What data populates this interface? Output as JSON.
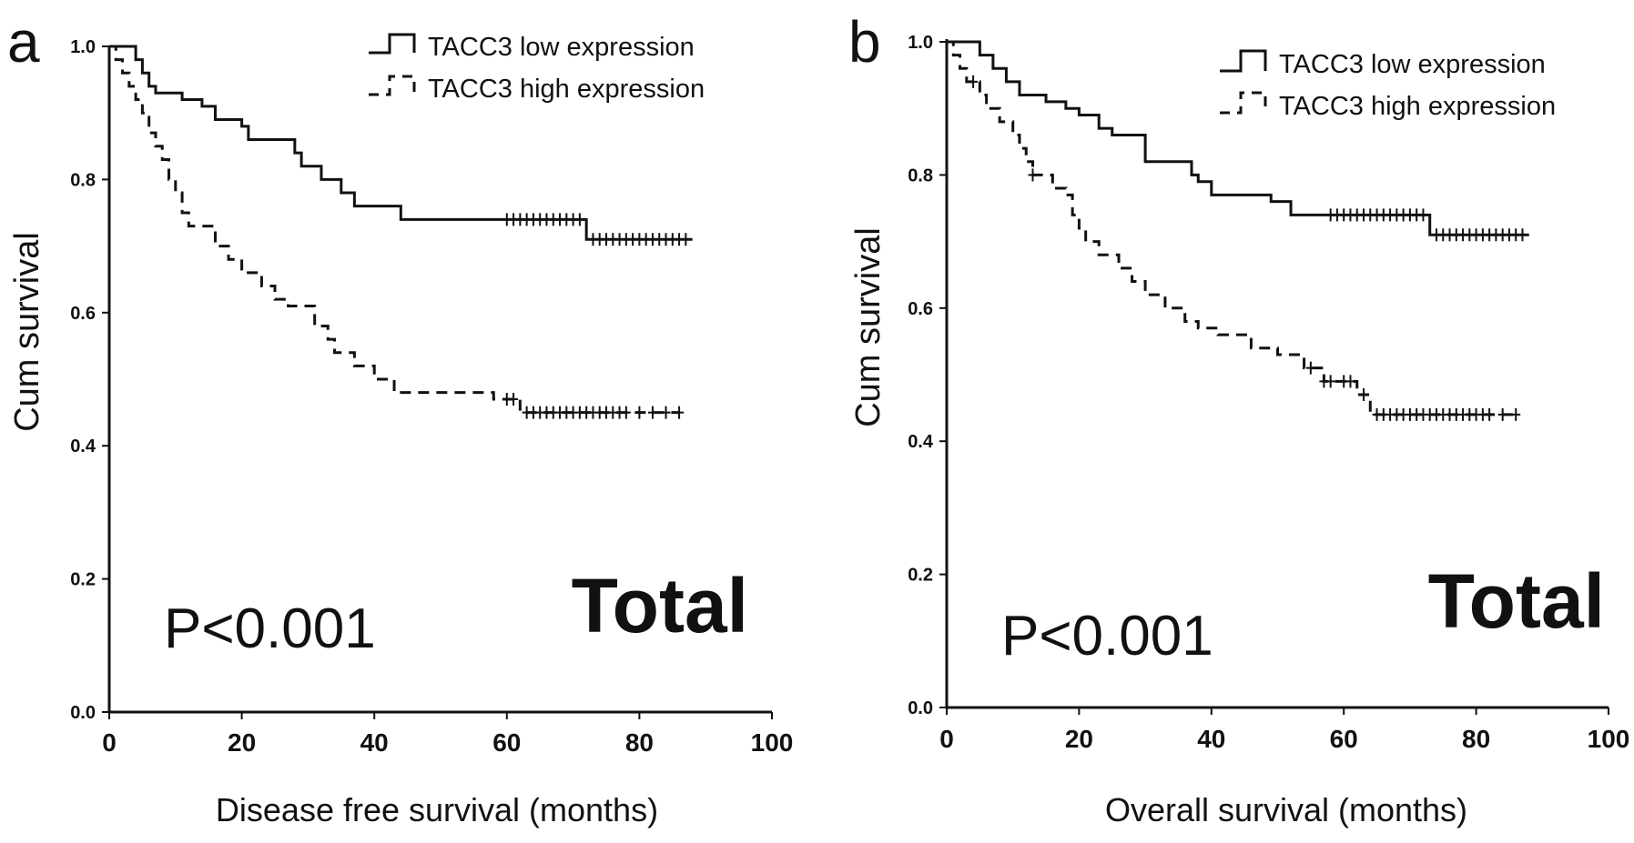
{
  "figure": {
    "colors": {
      "ink": "#111111",
      "background": "#ffffff"
    }
  },
  "chart_data": [
    {
      "type": "line",
      "panel_label": "a",
      "title": "",
      "xlabel": "Disease free survival (months)",
      "ylabel": "Cum survival",
      "xlim": [
        0,
        100
      ],
      "ylim": [
        0.0,
        1.0
      ],
      "x_ticks": [
        "0",
        "20",
        "40",
        "60",
        "80",
        "100"
      ],
      "y_ticks": [
        "0.0",
        "0.2",
        "0.4",
        "0.6",
        "0.8",
        "1.0"
      ],
      "grid": false,
      "legend_position": "top-right",
      "annotations": {
        "p_value": "P<0.001",
        "group": "Total"
      },
      "series": [
        {
          "name": "TACC3 low expression",
          "style": "solid",
          "steps": [
            [
              0,
              1.0
            ],
            [
              4,
              0.98
            ],
            [
              5,
              0.96
            ],
            [
              6,
              0.94
            ],
            [
              7,
              0.93
            ],
            [
              11,
              0.92
            ],
            [
              14,
              0.91
            ],
            [
              16,
              0.89
            ],
            [
              20,
              0.88
            ],
            [
              21,
              0.86
            ],
            [
              28,
              0.84
            ],
            [
              29,
              0.82
            ],
            [
              32,
              0.8
            ],
            [
              35,
              0.78
            ],
            [
              37,
              0.76
            ],
            [
              44,
              0.74
            ],
            [
              72,
              0.71
            ],
            [
              88,
              0.71
            ]
          ],
          "censored": [
            60,
            61,
            62,
            63,
            64,
            65,
            66,
            67,
            68,
            69,
            70,
            71,
            73,
            74,
            75,
            76,
            77,
            78,
            79,
            80,
            81,
            82,
            83,
            84,
            85,
            86,
            87
          ]
        },
        {
          "name": "TACC3 high expression",
          "style": "dashed",
          "steps": [
            [
              0,
              1.0
            ],
            [
              1,
              0.98
            ],
            [
              2,
              0.96
            ],
            [
              3,
              0.94
            ],
            [
              4,
              0.92
            ],
            [
              5,
              0.9
            ],
            [
              6,
              0.87
            ],
            [
              7,
              0.85
            ],
            [
              8,
              0.83
            ],
            [
              9,
              0.8
            ],
            [
              10,
              0.78
            ],
            [
              11,
              0.75
            ],
            [
              12,
              0.73
            ],
            [
              16,
              0.7
            ],
            [
              18,
              0.68
            ],
            [
              20,
              0.66
            ],
            [
              23,
              0.64
            ],
            [
              25,
              0.62
            ],
            [
              27,
              0.61
            ],
            [
              31,
              0.58
            ],
            [
              33,
              0.56
            ],
            [
              34,
              0.54
            ],
            [
              37,
              0.52
            ],
            [
              40,
              0.5
            ],
            [
              43,
              0.48
            ],
            [
              58,
              0.47
            ],
            [
              62,
              0.45
            ],
            [
              86,
              0.45
            ]
          ],
          "censored": [
            60,
            61,
            63,
            64,
            65,
            66,
            67,
            68,
            69,
            70,
            71,
            72,
            73,
            74,
            75,
            76,
            77,
            78,
            80,
            82,
            84,
            86
          ]
        }
      ]
    },
    {
      "type": "line",
      "panel_label": "b",
      "title": "",
      "xlabel": "Overall survival (months)",
      "ylabel": "Cum survival",
      "xlim": [
        0,
        100
      ],
      "ylim": [
        0.0,
        1.0
      ],
      "x_ticks": [
        "0",
        "20",
        "40",
        "60",
        "80",
        "100"
      ],
      "y_ticks": [
        "0.0",
        "0.2",
        "0.4",
        "0.6",
        "0.8",
        "1.0"
      ],
      "grid": false,
      "legend_position": "top-right",
      "annotations": {
        "p_value": "P<0.001",
        "group": "Total"
      },
      "series": [
        {
          "name": "TACC3 low expression",
          "style": "solid",
          "steps": [
            [
              0,
              1.0
            ],
            [
              5,
              0.98
            ],
            [
              7,
              0.96
            ],
            [
              9,
              0.94
            ],
            [
              11,
              0.92
            ],
            [
              15,
              0.91
            ],
            [
              18,
              0.9
            ],
            [
              20,
              0.89
            ],
            [
              23,
              0.87
            ],
            [
              25,
              0.86
            ],
            [
              30,
              0.82
            ],
            [
              37,
              0.8
            ],
            [
              38,
              0.79
            ],
            [
              40,
              0.77
            ],
            [
              49,
              0.76
            ],
            [
              52,
              0.74
            ],
            [
              73,
              0.71
            ],
            [
              88,
              0.71
            ]
          ],
          "censored": [
            58,
            59,
            60,
            61,
            62,
            63,
            64,
            65,
            66,
            67,
            68,
            69,
            70,
            71,
            72,
            74,
            75,
            76,
            77,
            78,
            79,
            80,
            81,
            82,
            83,
            84,
            85,
            86,
            87
          ]
        },
        {
          "name": "TACC3 high expression",
          "style": "dashed",
          "steps": [
            [
              0,
              1.0
            ],
            [
              1,
              0.98
            ],
            [
              2,
              0.96
            ],
            [
              3,
              0.94
            ],
            [
              5,
              0.92
            ],
            [
              6,
              0.9
            ],
            [
              8,
              0.88
            ],
            [
              10,
              0.86
            ],
            [
              11,
              0.84
            ],
            [
              12,
              0.82
            ],
            [
              13,
              0.8
            ],
            [
              16,
              0.78
            ],
            [
              18,
              0.77
            ],
            [
              19,
              0.74
            ],
            [
              20,
              0.72
            ],
            [
              21,
              0.7
            ],
            [
              23,
              0.68
            ],
            [
              26,
              0.66
            ],
            [
              28,
              0.64
            ],
            [
              30,
              0.62
            ],
            [
              33,
              0.6
            ],
            [
              36,
              0.58
            ],
            [
              38,
              0.57
            ],
            [
              41,
              0.56
            ],
            [
              46,
              0.54
            ],
            [
              50,
              0.53
            ],
            [
              54,
              0.51
            ],
            [
              57,
              0.49
            ],
            [
              62,
              0.47
            ],
            [
              64,
              0.44
            ],
            [
              86,
              0.44
            ]
          ],
          "censored": [
            4,
            13,
            55,
            57,
            58,
            60,
            61,
            63,
            65,
            66,
            67,
            68,
            69,
            70,
            71,
            72,
            73,
            74,
            75,
            76,
            77,
            78,
            79,
            80,
            81,
            82,
            84,
            86
          ]
        }
      ]
    }
  ]
}
